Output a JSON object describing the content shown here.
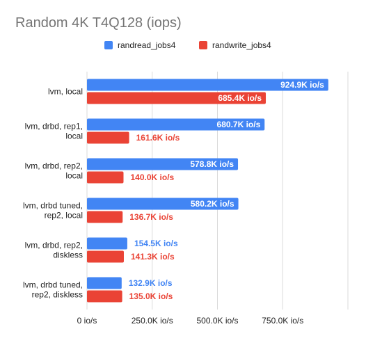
{
  "chart_data": {
    "type": "bar",
    "orientation": "horizontal",
    "title": "Random 4K T4Q128 (iops)",
    "legend_position": "top",
    "grid": true,
    "xlim": [
      0,
      1000
    ],
    "x_unit": "K io/s",
    "tick_labels": [
      "0 io/s",
      "250.0K io/s",
      "500.0K io/s",
      "750.0K io/s"
    ],
    "tick_values": [
      0,
      250,
      500,
      750
    ],
    "categories": [
      [
        "lvm, local"
      ],
      [
        "lvm, drbd, rep1,",
        "local"
      ],
      [
        "lvm, drbd, rep2,",
        "local"
      ],
      [
        "lvm, drbd tuned,",
        "rep2, local"
      ],
      [
        "lvm, drbd, rep2,",
        "diskless"
      ],
      [
        "lvm, drbd tuned,",
        "rep2, diskless"
      ]
    ],
    "series": [
      {
        "name": "randread_jobs4",
        "color": "#4285f4",
        "values": [
          924.9,
          680.7,
          578.8,
          580.2,
          154.5,
          132.9
        ],
        "labels": [
          "924.9K io/s",
          "680.7K io/s",
          "578.8K io/s",
          "580.2K io/s",
          "154.5K io/s",
          "132.9K io/s"
        ]
      },
      {
        "name": "randwrite_jobs4",
        "color": "#ea4335",
        "values": [
          685.4,
          161.6,
          140.0,
          136.7,
          141.3,
          135.0
        ],
        "labels": [
          "685.4K io/s",
          "161.6K io/s",
          "140.0K io/s",
          "136.7K io/s",
          "141.3K io/s",
          "135.0K io/s"
        ]
      }
    ]
  }
}
